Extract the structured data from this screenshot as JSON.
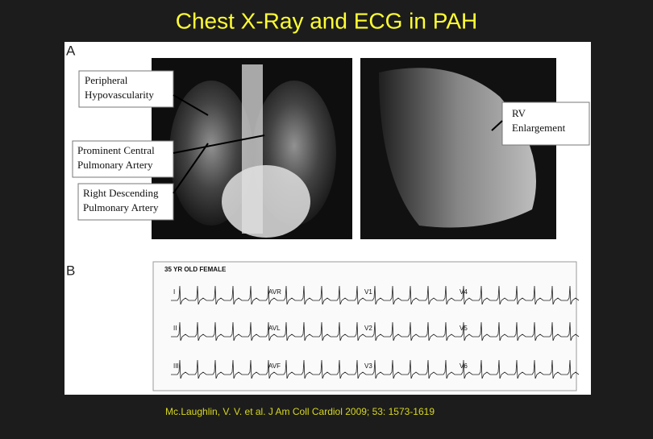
{
  "title": "Chest X-Ray and ECG in PAH",
  "panel_a": {
    "label": "A",
    "callouts": [
      [
        "Peripheral",
        "Hypovascularity"
      ],
      [
        "Prominent  Central",
        "Pulmonary Artery"
      ],
      [
        "Right Descending",
        "Pulmonary Artery"
      ],
      [
        "RV",
        "Enlargement"
      ]
    ]
  },
  "panel_b": {
    "label": "B",
    "header": "35 YR OLD FEMALE",
    "leads": [
      [
        "I",
        "AVR",
        "V1",
        "V4"
      ],
      [
        "II",
        "AVL",
        "V2",
        "V5"
      ],
      [
        "III",
        "AVF",
        "V3",
        "V6"
      ]
    ]
  },
  "citation": "Mc.Laughlin, V. V. et al. J Am Coll Cardiol 2009; 53: 1573-1619"
}
